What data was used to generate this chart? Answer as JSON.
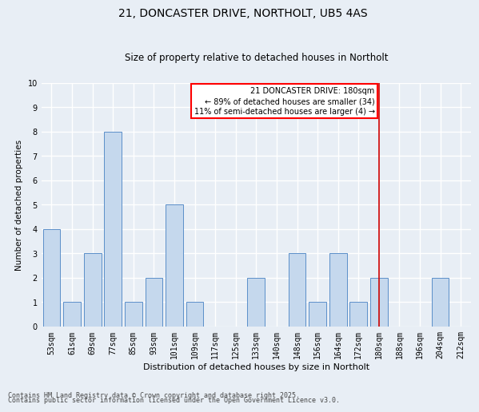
{
  "title1": "21, DONCASTER DRIVE, NORTHOLT, UB5 4AS",
  "title2": "Size of property relative to detached houses in Northolt",
  "xlabel": "Distribution of detached houses by size in Northolt",
  "ylabel": "Number of detached properties",
  "categories": [
    "53sqm",
    "61sqm",
    "69sqm",
    "77sqm",
    "85sqm",
    "93sqm",
    "101sqm",
    "109sqm",
    "117sqm",
    "125sqm",
    "133sqm",
    "140sqm",
    "148sqm",
    "156sqm",
    "164sqm",
    "172sqm",
    "180sqm",
    "188sqm",
    "196sqm",
    "204sqm",
    "212sqm"
  ],
  "values": [
    4,
    1,
    3,
    8,
    1,
    2,
    5,
    1,
    0,
    0,
    2,
    0,
    3,
    1,
    3,
    1,
    2,
    0,
    0,
    2,
    0
  ],
  "bar_color": "#c5d8ed",
  "bar_edge_color": "#5b8fc9",
  "highlight_line_index": 16,
  "highlight_color": "#cc0000",
  "ylim": [
    0,
    10
  ],
  "yticks": [
    0,
    1,
    2,
    3,
    4,
    5,
    6,
    7,
    8,
    9,
    10
  ],
  "annotation_title": "21 DONCASTER DRIVE: 180sqm",
  "annotation_line1": "← 89% of detached houses are smaller (34)",
  "annotation_line2": "11% of semi-detached houses are larger (4) →",
  "footnote1": "Contains HM Land Registry data © Crown copyright and database right 2025.",
  "footnote2": "Contains public sector information licensed under the Open Government Licence v3.0.",
  "bg_color": "#e8eef5",
  "plot_bg_color": "#e8eef5",
  "grid_color": "#ffffff",
  "title1_fontsize": 10,
  "title2_fontsize": 8.5,
  "xlabel_fontsize": 8,
  "ylabel_fontsize": 7.5,
  "tick_fontsize": 7,
  "footnote_fontsize": 6,
  "annotation_fontsize": 7
}
